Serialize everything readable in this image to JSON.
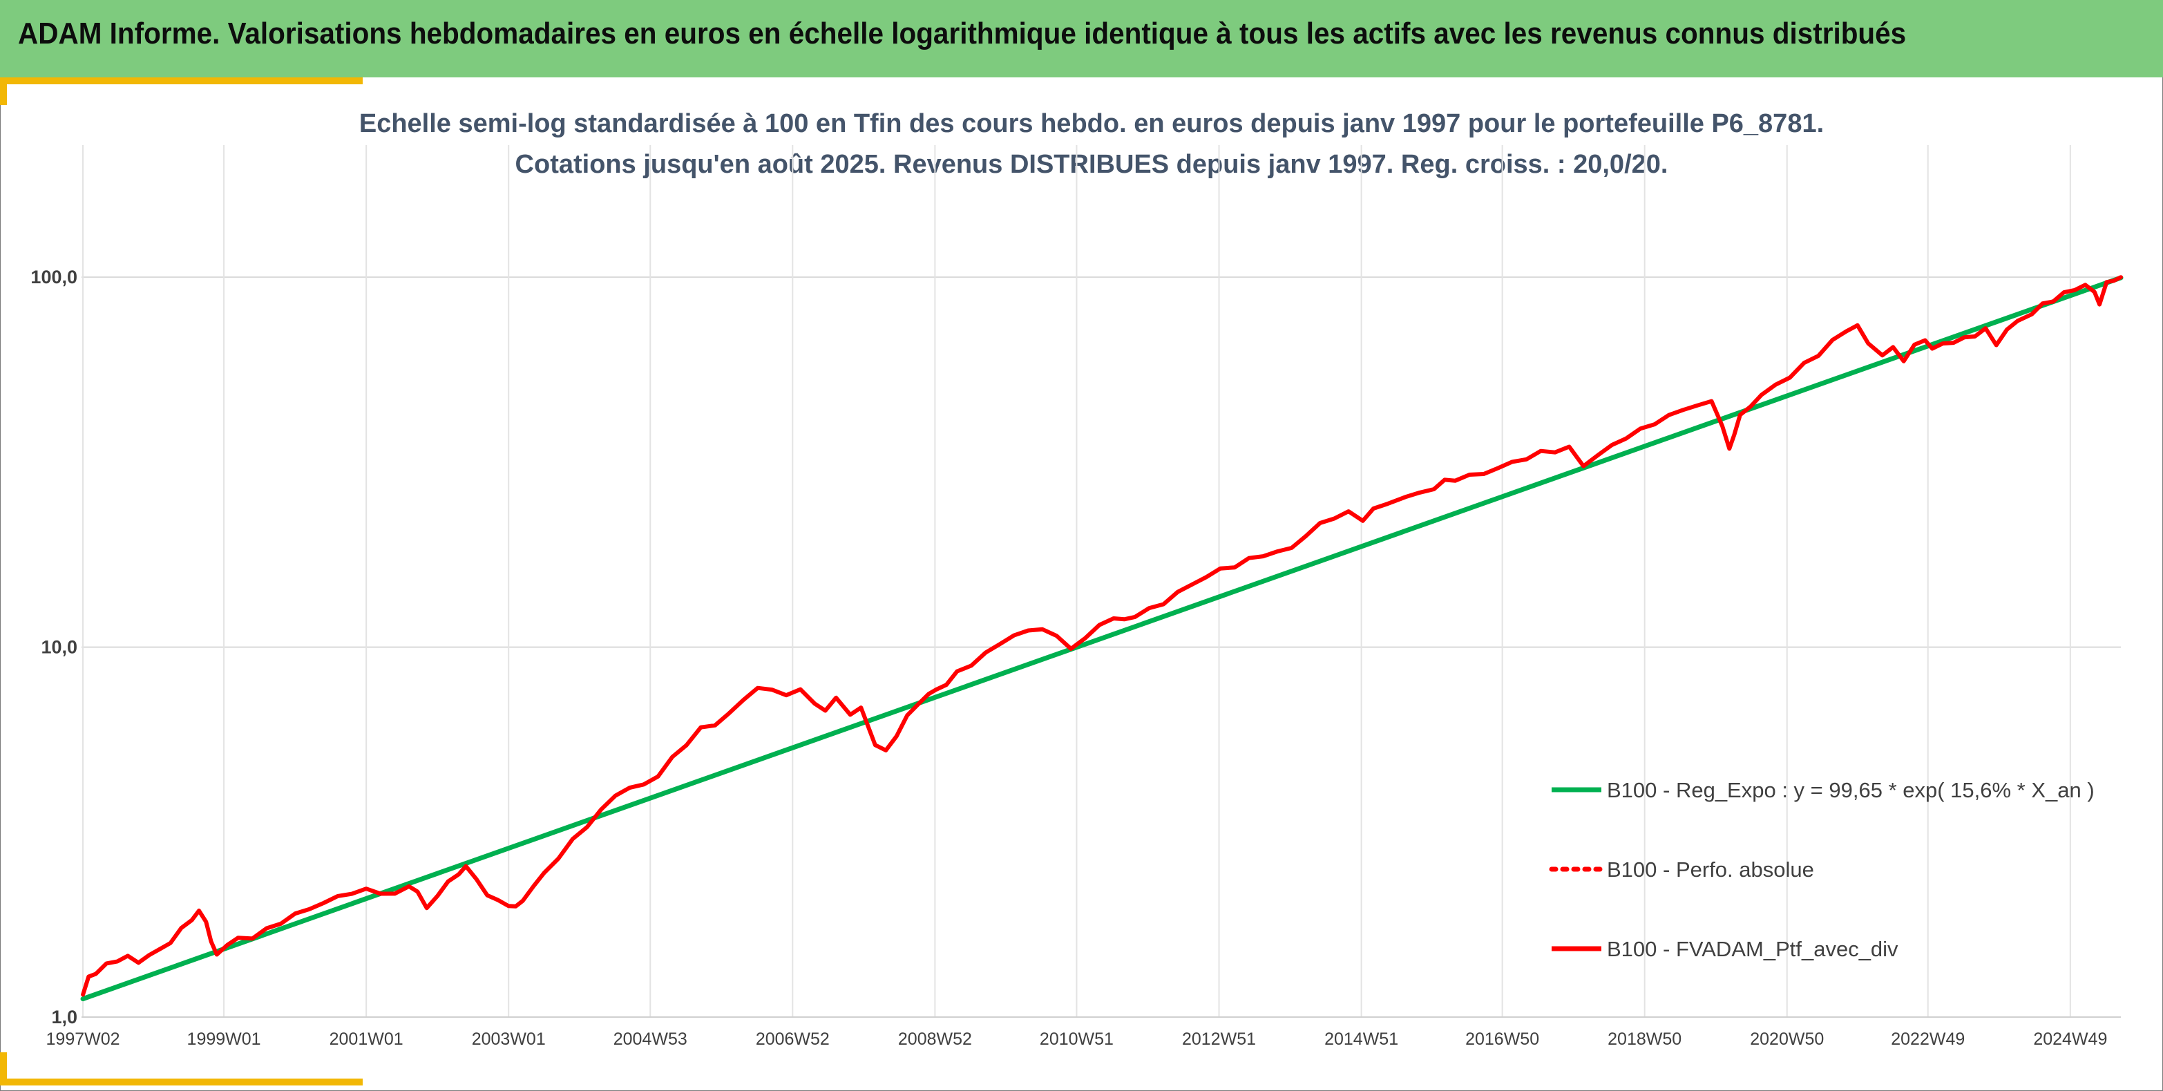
{
  "header": {
    "title": "ADAM Informe. Valorisations hebdomadaires en euros en échelle logarithmique identique à tous les actifs avec les revenus connus distribués"
  },
  "colors": {
    "banner": "#7ecb7e",
    "accent_gold": "#f2b705",
    "regression": "#00b050",
    "portfolio": "#ff0000",
    "subtitle": "#44546a"
  },
  "chart_data": {
    "type": "line",
    "title_lines": [
      "Echelle semi-log standardisée à 100 en Tfin des cours hebdo. en euros depuis janv 1997 pour le portefeuille P6_8781.",
      "Cotations jusqu'en août 2025. Revenus DISTRIBUES depuis janv 1997. Reg. croiss. : 20,0/20."
    ],
    "y_scale": "log",
    "ylim": [
      1,
      200
    ],
    "y_ticks": [
      {
        "value": 1,
        "label": "1,0"
      },
      {
        "value": 10,
        "label": "10,0"
      },
      {
        "value": 100,
        "label": "100,0"
      }
    ],
    "xlim": [
      1997.0,
      2025.65
    ],
    "x_ticks": [
      {
        "value": 1997.02,
        "label": "1997W02"
      },
      {
        "value": 1999.0,
        "label": "1999W01"
      },
      {
        "value": 2001.0,
        "label": "2001W01"
      },
      {
        "value": 2003.0,
        "label": "2003W01"
      },
      {
        "value": 2004.99,
        "label": "2004W53"
      },
      {
        "value": 2006.99,
        "label": "2006W52"
      },
      {
        "value": 2008.99,
        "label": "2008W52"
      },
      {
        "value": 2010.98,
        "label": "2010W51"
      },
      {
        "value": 2012.98,
        "label": "2012W51"
      },
      {
        "value": 2014.98,
        "label": "2014W51"
      },
      {
        "value": 2016.96,
        "label": "2016W50"
      },
      {
        "value": 2018.96,
        "label": "2018W50"
      },
      {
        "value": 2020.96,
        "label": "2020W50"
      },
      {
        "value": 2022.94,
        "label": "2022W49"
      },
      {
        "value": 2024.94,
        "label": "2024W49"
      }
    ],
    "grid": {
      "vertical": true,
      "horizontal": true
    },
    "legend_position": "bottom-right",
    "series": [
      {
        "name": "B100 - Reg_Expo : y = 99,65 * exp( 15,6% *  X_an )",
        "style": "solid",
        "color": "#00b050",
        "x": [
          1997.02,
          2025.65
        ],
        "y": [
          1.12,
          99.65
        ]
      },
      {
        "name": "B100 - Perfo. absolue",
        "style": "dotted",
        "color": "#ff0000",
        "x": [],
        "y": []
      },
      {
        "name": "B100 - FVADAM_Ptf_avec_div",
        "style": "solid",
        "color": "#ff0000",
        "x": [
          1997.02,
          1997.1,
          1997.2,
          1997.35,
          1997.5,
          1997.65,
          1997.8,
          1997.95,
          1998.1,
          1998.25,
          1998.4,
          1998.55,
          1998.65,
          1998.75,
          1998.82,
          1998.9,
          1999.05,
          1999.2,
          1999.4,
          1999.6,
          1999.8,
          2000.0,
          2000.2,
          2000.4,
          2000.6,
          2000.8,
          2001.0,
          2001.2,
          2001.4,
          2001.6,
          2001.72,
          2001.85,
          2002.0,
          2002.15,
          2002.3,
          2002.4,
          2002.55,
          2002.7,
          2002.85,
          2003.0,
          2003.1,
          2003.2,
          2003.35,
          2003.5,
          2003.7,
          2003.9,
          2004.1,
          2004.3,
          2004.5,
          2004.7,
          2004.9,
          2005.1,
          2005.3,
          2005.5,
          2005.7,
          2005.9,
          2006.1,
          2006.3,
          2006.5,
          2006.7,
          2006.9,
          2007.1,
          2007.3,
          2007.45,
          2007.6,
          2007.8,
          2007.95,
          2008.15,
          2008.3,
          2008.45,
          2008.6,
          2008.75,
          2008.9,
          2009.0,
          2009.15,
          2009.3,
          2009.5,
          2009.7,
          2009.9,
          2010.1,
          2010.3,
          2010.5,
          2010.7,
          2010.9,
          2011.1,
          2011.3,
          2011.5,
          2011.65,
          2011.8,
          2012.0,
          2012.2,
          2012.4,
          2012.6,
          2012.8,
          2013.0,
          2013.2,
          2013.4,
          2013.6,
          2013.8,
          2014.0,
          2014.2,
          2014.4,
          2014.6,
          2014.8,
          2015.0,
          2015.15,
          2015.35,
          2015.6,
          2015.8,
          2016.0,
          2016.15,
          2016.3,
          2016.5,
          2016.7,
          2016.9,
          2017.1,
          2017.3,
          2017.5,
          2017.7,
          2017.9,
          2018.1,
          2018.3,
          2018.5,
          2018.7,
          2018.9,
          2019.1,
          2019.3,
          2019.5,
          2019.7,
          2019.9,
          2020.05,
          2020.15,
          2020.22,
          2020.3,
          2020.45,
          2020.6,
          2020.8,
          2021.0,
          2021.2,
          2021.4,
          2021.6,
          2021.8,
          2021.95,
          2022.1,
          2022.3,
          2022.45,
          2022.6,
          2022.75,
          2022.9,
          2023.0,
          2023.15,
          2023.3,
          2023.45,
          2023.6,
          2023.75,
          2023.9,
          2024.05,
          2024.2,
          2024.4,
          2024.55,
          2024.7,
          2024.85,
          2025.0,
          2025.15,
          2025.28,
          2025.35,
          2025.45,
          2025.55,
          2025.65
        ],
        "y": [
          1.15,
          1.28,
          1.32,
          1.38,
          1.43,
          1.45,
          1.41,
          1.47,
          1.52,
          1.6,
          1.72,
          1.85,
          1.92,
          1.82,
          1.6,
          1.47,
          1.58,
          1.62,
          1.65,
          1.72,
          1.8,
          1.9,
          1.95,
          2.05,
          2.1,
          2.18,
          2.2,
          2.17,
          2.15,
          2.25,
          2.2,
          1.95,
          2.15,
          2.3,
          2.45,
          2.55,
          2.35,
          2.15,
          2.05,
          2.02,
          1.97,
          2.08,
          2.25,
          2.45,
          2.7,
          3.0,
          3.3,
          3.6,
          4.0,
          4.15,
          4.25,
          4.5,
          5.0,
          5.5,
          6.0,
          6.2,
          6.6,
          7.2,
          7.8,
          7.6,
          7.5,
          7.6,
          7.1,
          6.7,
          7.3,
          6.6,
          6.8,
          5.5,
          5.2,
          5.8,
          6.5,
          7.0,
          7.5,
          7.6,
          8.0,
          8.5,
          9.0,
          9.6,
          10.2,
          10.8,
          11.0,
          11.3,
          10.6,
          10.0,
          10.5,
          11.5,
          12.0,
          11.8,
          12.2,
          12.6,
          13.2,
          14.0,
          14.8,
          15.5,
          16.2,
          16.6,
          17.2,
          17.8,
          18.0,
          18.6,
          20.0,
          21.5,
          22.5,
          23.0,
          22.2,
          23.5,
          24.5,
          25.5,
          26.0,
          27.0,
          28.0,
          28.5,
          29.0,
          29.5,
          30.5,
          31.5,
          32.5,
          33.5,
          34.0,
          34.5,
          31.0,
          33.0,
          35.0,
          37.0,
          38.5,
          40.5,
          42.0,
          44.0,
          45.0,
          46.0,
          40.0,
          34.0,
          38.0,
          42.0,
          45.0,
          48.0,
          51.0,
          54.0,
          58.0,
          62.0,
          67.0,
          72.0,
          74.0,
          66.0,
          62.0,
          64.0,
          60.0,
          65.0,
          68.0,
          64.0,
          66.0,
          67.0,
          68.0,
          70.0,
          72.0,
          66.0,
          72.0,
          76.0,
          80.0,
          84.0,
          87.0,
          90.0,
          93.0,
          95.0,
          91.0,
          85.0,
          96.0,
          99.0,
          100.0
        ]
      }
    ]
  }
}
